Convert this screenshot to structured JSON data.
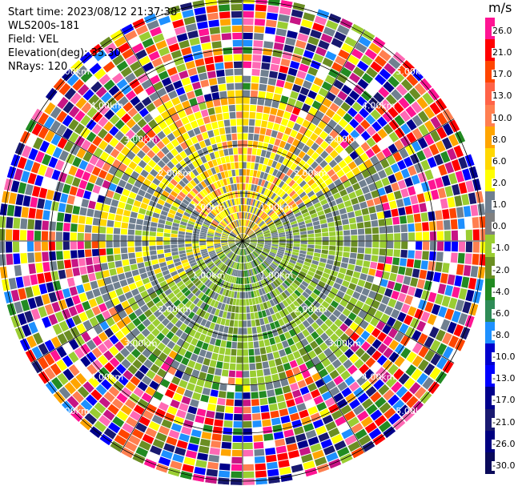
{
  "header": {
    "start_time": "Start time: 2023/08/12 21:37:38",
    "instrument": "WLS200s-181",
    "field": "Field: VEL",
    "elevation": "Elevation(deg): 35.30",
    "nrays": "NRays: 120"
  },
  "ring_labels": [
    "1.00km",
    "2.00km",
    "3.00km",
    "4.00km",
    "5.00km"
  ],
  "colorbar": {
    "unit": "m/s",
    "ticks": [
      "26.0",
      "21.0",
      "17.0",
      "13.0",
      "10.0",
      "8.0",
      "6.0",
      "2.0",
      "1.0",
      "0.0",
      "-1.0",
      "-2.0",
      "-4.0",
      "-6.0",
      "-8.0",
      "-10.0",
      "-13.0",
      "-17.0",
      "-21.0",
      "-26.0",
      "-30.0"
    ],
    "colors": [
      "#ff1493",
      "#ff0000",
      "#ff4500",
      "#ff6347",
      "#ff7f50",
      "#ffa500",
      "#ffd700",
      "#ffff00",
      "#708090",
      "#808080",
      "#9acd32",
      "#6b8e23",
      "#228b22",
      "#2e8b57",
      "#1e90ff",
      "#0000cd",
      "#0000ff",
      "#00008b",
      "#191970",
      "#000080",
      "#0a0a5a"
    ]
  }
}
